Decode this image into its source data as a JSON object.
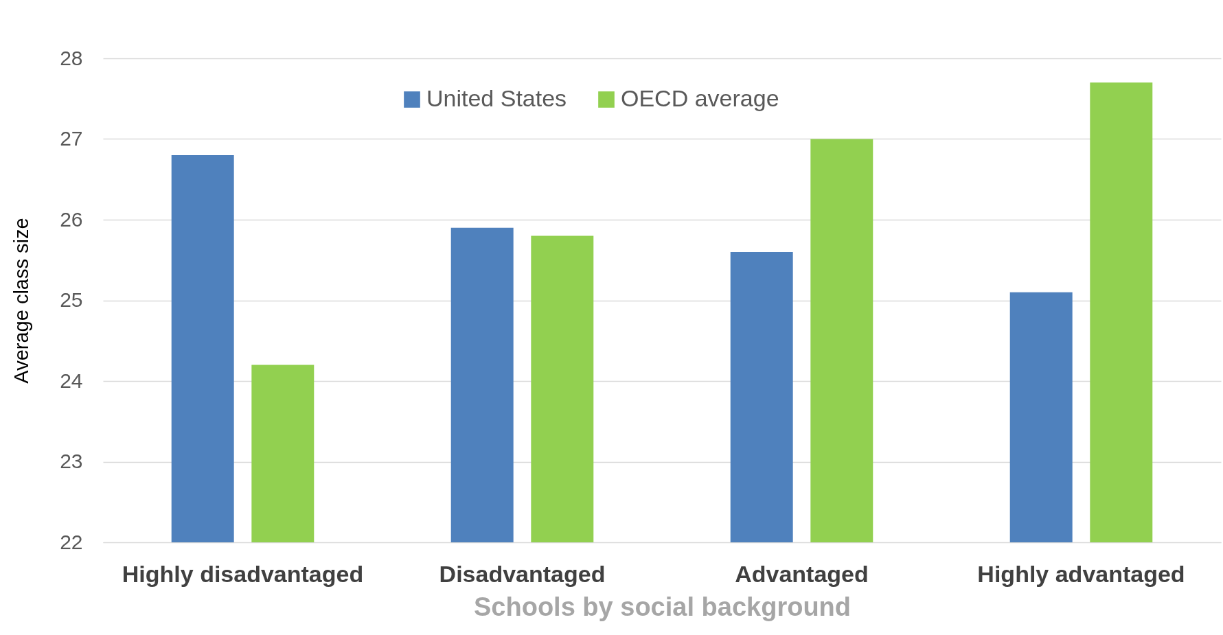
{
  "chart_data": {
    "type": "bar",
    "xlabel": "Schools by social background",
    "ylabel": "Average class size",
    "categories": [
      "Highly disadvantaged",
      "Disadvantaged",
      "Advantaged",
      "Highly advantaged"
    ],
    "series": [
      {
        "name": "United States",
        "color": "#4f81bd",
        "values": [
          26.8,
          25.9,
          25.6,
          25.1
        ]
      },
      {
        "name": "OECD average",
        "color": "#92d050",
        "values": [
          24.2,
          25.8,
          27.0,
          27.7
        ]
      }
    ],
    "ylim": [
      22,
      28
    ],
    "yticks": [
      22,
      23,
      24,
      25,
      26,
      27,
      28
    ],
    "grid": "y",
    "legend": "top"
  }
}
